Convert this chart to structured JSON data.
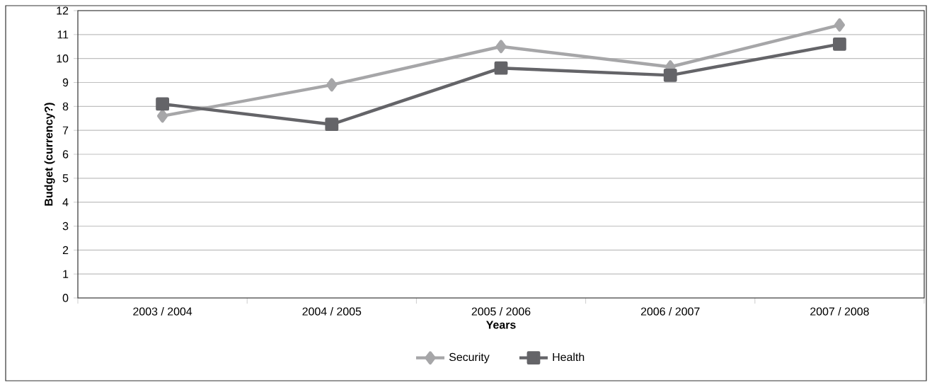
{
  "chart_data": {
    "type": "line",
    "xlabel": "Years",
    "ylabel": "Budget (currency?)",
    "categories": [
      "2003 / 2004",
      "2004 / 2005",
      "2005 / 2006",
      "2006 / 2007",
      "2007 / 2008"
    ],
    "series": [
      {
        "name": "Security",
        "color": "#a6a6a8",
        "marker": "diamond",
        "values": [
          7.6,
          8.9,
          10.5,
          9.65,
          11.4
        ]
      },
      {
        "name": "Health",
        "color": "#646468",
        "marker": "square",
        "values": [
          8.1,
          7.25,
          9.6,
          9.3,
          10.6
        ]
      }
    ],
    "ylim": [
      0,
      12
    ],
    "yticks": [
      0,
      1,
      2,
      3,
      4,
      5,
      6,
      7,
      8,
      9,
      10,
      11,
      12
    ],
    "grid": "y",
    "legend": "bottom",
    "line_style": "solid"
  }
}
